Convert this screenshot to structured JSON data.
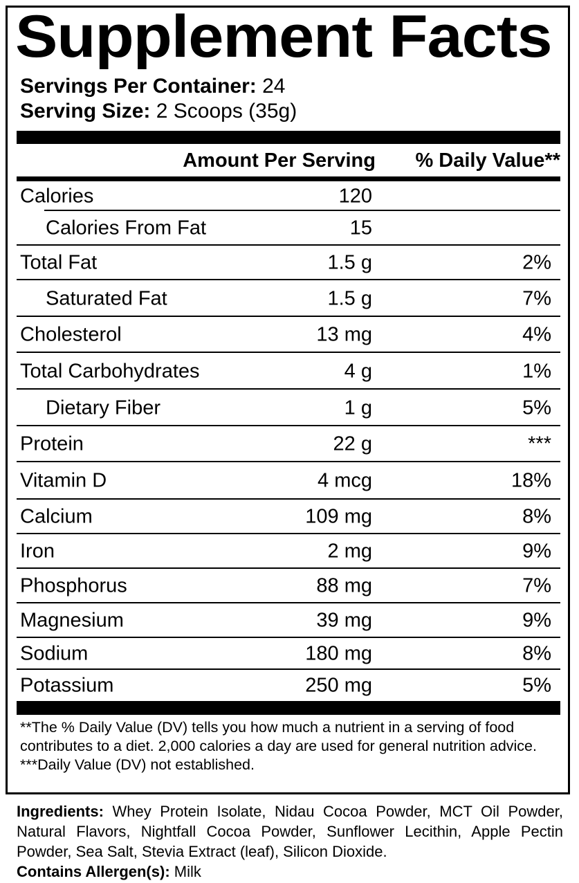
{
  "title": "Supplement Facts",
  "servings_per_container": {
    "label": "Servings Per Container:",
    "value": "24"
  },
  "serving_size": {
    "label": "Serving Size:",
    "value": "2 Scoops (35g)"
  },
  "header": {
    "amount": "Amount Per Serving",
    "dv": "% Daily Value**"
  },
  "rows": [
    {
      "name": "Calories",
      "amount": "120",
      "dv": ""
    },
    {
      "name": "Calories From Fat",
      "amount": "15",
      "dv": ""
    },
    {
      "name": "Total Fat",
      "amount": "1.5 g",
      "dv": "2%"
    },
    {
      "name": "Saturated Fat",
      "amount": "1.5 g",
      "dv": "7%"
    },
    {
      "name": "Cholesterol",
      "amount": "13 mg",
      "dv": "4%"
    },
    {
      "name": "Total Carbohydrates",
      "amount": "4 g",
      "dv": "1%"
    },
    {
      "name": "Dietary Fiber",
      "amount": "1 g",
      "dv": "5%"
    },
    {
      "name": "Protein",
      "amount": "22 g",
      "dv": "***"
    },
    {
      "name": "Vitamin D",
      "amount": "4 mcg",
      "dv": "18%"
    },
    {
      "name": "Calcium",
      "amount": "109 mg",
      "dv": "8%"
    },
    {
      "name": "Iron",
      "amount": "2 mg",
      "dv": "9%"
    },
    {
      "name": "Phosphorus",
      "amount": "88 mg",
      "dv": "7%"
    },
    {
      "name": "Magnesium",
      "amount": "39 mg",
      "dv": "9%"
    },
    {
      "name": "Sodium",
      "amount": "180 mg",
      "dv": "8%"
    },
    {
      "name": "Potassium",
      "amount": "250 mg",
      "dv": "5%"
    }
  ],
  "footnotes": {
    "dv_note": "**The % Daily Value (DV) tells you how much a nutrient in a serving of food contributes to a diet. 2,000 calories a day are used for general nutrition advice.",
    "not_established": "***Daily Value (DV) not established."
  },
  "ingredients": {
    "label": "Ingredients:",
    "value": "Whey Protein Isolate, Nidau Cocoa Powder, MCT Oil Powder, Natural Flavors, Nightfall Cocoa Powder, Sunflower Lecithin, Apple Pectin Powder, Sea Salt, Stevia Extract (leaf), Silicon Dioxide."
  },
  "allergens": {
    "label": "Contains Allergen(s):",
    "value": "Milk"
  }
}
